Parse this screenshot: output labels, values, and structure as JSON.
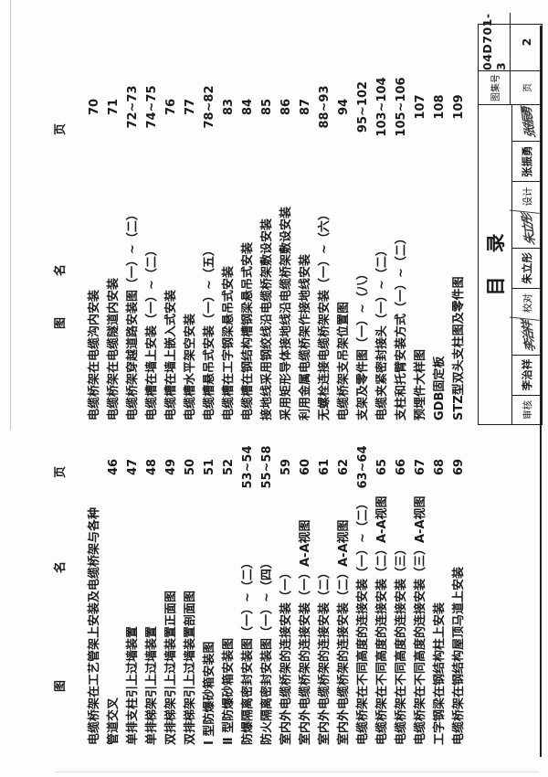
{
  "toc": {
    "header": {
      "drawing": "图",
      "name": "名",
      "page": "页"
    },
    "left_column": [
      {
        "name": "电缆桥架在工艺管架上安装及电缆桥架与各种",
        "page": ""
      },
      {
        "name": "管道交叉",
        "page": "46"
      },
      {
        "name": "单排支柱引上过墙装置",
        "page": "47"
      },
      {
        "name": "单排梯架引上过墙装置",
        "page": "48"
      },
      {
        "name": "双排梯架引上过墙装置正面图",
        "page": "49"
      },
      {
        "name": "双排梯架引上过墙装置剖面图",
        "page": "50"
      },
      {
        "name": "Ⅰ 型防爆砂箱安装图",
        "page": "51"
      },
      {
        "name": "Ⅱ 型防爆砂箱安装图",
        "page": "52"
      },
      {
        "name": "防爆隔离密封安装图（一）~（二）",
        "page": "53~54"
      },
      {
        "name": "防火隔离密封安装图（一）~（四）",
        "page": "55~58"
      },
      {
        "name": "室内外电缆桥架的连接安装（一）",
        "page": "59"
      },
      {
        "name": "室内外电缆桥架的连接安装（一）A-A视图",
        "page": "60"
      },
      {
        "name": "室内外电缆桥架的连接安装（二）",
        "page": "61"
      },
      {
        "name": "室内外电缆桥架的连接安装（二）A-A视图",
        "page": "62"
      },
      {
        "name": "电缆桥架在不同高度的连接安装（一）~（二）",
        "page": "63~64"
      },
      {
        "name": "电缆桥架在不同高度的连接安装（二）A-A视图",
        "page": "65"
      },
      {
        "name": "电缆桥架在不同高度的连接安装（三）",
        "page": "66"
      },
      {
        "name": "电缆桥架在不同高度的连接安装（三）A-A视图",
        "page": "67"
      },
      {
        "name": "工字钢梁在钢结构柱上安装",
        "page": "68"
      },
      {
        "name": "电缆桥架在钢结构屋顶马道上安装",
        "page": "69"
      }
    ],
    "right_column": [
      {
        "name": "电缆桥架在电缆沟内安装",
        "page": "70"
      },
      {
        "name": "电缆桥架在电缆隧道内安装",
        "page": "71"
      },
      {
        "name": "电缆桥架穿越道路安装图（一）~（二）",
        "page": "72~73"
      },
      {
        "name": "电缆槽在墙上安装（一）~（二）",
        "page": "74~75"
      },
      {
        "name": "电缆槽在墙上嵌入式安装",
        "page": "76"
      },
      {
        "name": "电缆槽水平架空安装",
        "page": "77"
      },
      {
        "name": "电缆槽悬吊式安装（一）~（五）",
        "page": "78~82"
      },
      {
        "name": "电缆槽在工字钢梁悬吊式安装",
        "page": "83"
      },
      {
        "name": "电缆槽在钢结构槽钢梁悬吊式安装",
        "page": "84"
      },
      {
        "name": "接地线采用钢绞线沿电缆桥架敷设安装",
        "page": "85"
      },
      {
        "name": "采用矩形导体接地线沿电缆桥架敷设安装",
        "page": "86"
      },
      {
        "name": "利用金属电缆桥架作接地线安装",
        "page": "87"
      },
      {
        "name": "无螺栓连接电缆桥架安装（一）~（六）",
        "page": "88~93"
      },
      {
        "name": "电缆桥架支吊架位置图",
        "page": "94"
      },
      {
        "name": "支架及零件图（一）~（八）",
        "page": "95~102"
      },
      {
        "name": "电缆夹紧密封接头（一）~（二）",
        "page": "103~104"
      },
      {
        "name": "支柱和托臂安装方式（一）~（二）",
        "page": "105~106"
      },
      {
        "name": "预埋件大样图",
        "page": "107"
      },
      {
        "name": "GDB固定板",
        "page": "108"
      },
      {
        "name": "STZ型双头支柱图及零件图",
        "page": "109"
      }
    ]
  },
  "title_block": {
    "doc_title": "目录",
    "signers": [
      {
        "label": "审核",
        "name": "李治祥",
        "signature": "李治祥"
      },
      {
        "label": "校对",
        "name": "朱立彤",
        "signature": "朱立彤"
      },
      {
        "label": "设计",
        "name": "张振勇",
        "signature": "张振勇"
      }
    ],
    "atlas_no_label": "图集号",
    "atlas_no": "04D701-3",
    "page_label": "页",
    "page_no": "2"
  }
}
